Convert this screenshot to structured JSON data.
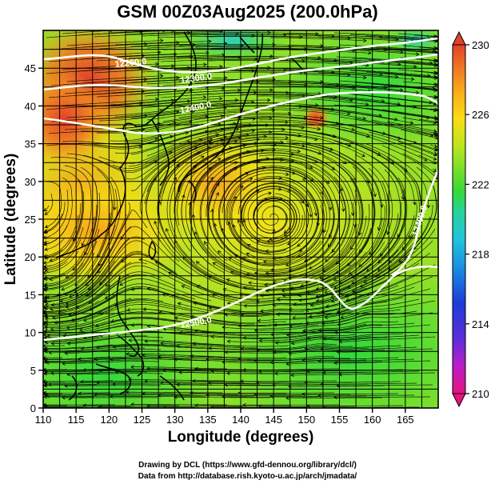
{
  "title": "GSM 00Z03Aug2025 (200.0hPa)",
  "map": {
    "xlabel": "Longitude (degrees)",
    "ylabel": "Latitude  (degrees)",
    "x_ticks": [
      "110",
      "115",
      "120",
      "125",
      "130",
      "135",
      "140",
      "145",
      "150",
      "155",
      "160",
      "165"
    ],
    "y_ticks": [
      "0",
      "5",
      "10",
      "15",
      "20",
      "25",
      "30",
      "35",
      "40",
      "45"
    ],
    "lon_range": [
      110,
      170
    ],
    "lat_range": [
      0,
      50
    ],
    "grid": true,
    "projection": "equirectangular",
    "field": "temperature (K)",
    "overlays": [
      "streamlines",
      "geopotential height contours (white)",
      "coastlines"
    ]
  },
  "contour_labels": [
    {
      "text": "12200.0"
    },
    {
      "text": "12300.0"
    },
    {
      "text": "12400.0"
    },
    {
      "text": "12400.0"
    },
    {
      "text": "12500.0"
    }
  ],
  "colorbar": {
    "ticks": [
      "230",
      "226",
      "222",
      "218",
      "214",
      "210"
    ],
    "range": [
      210,
      230
    ],
    "colors": [
      "#e8137e",
      "#b81ec8",
      "#5a2ed8",
      "#1c3cd8",
      "#1a8de0",
      "#1ec4dc",
      "#28d29e",
      "#36d836",
      "#7ee02a",
      "#c6e41c",
      "#fadc14",
      "#f8b01a",
      "#f07a22",
      "#e2422a"
    ]
  },
  "credits": [
    "Drawing by DCL (https://www.gfd-dennou.org/library/dcl/)",
    "Data from http://database.rish.kyoto-u.ac.jp/arch/jmadata/"
  ]
}
